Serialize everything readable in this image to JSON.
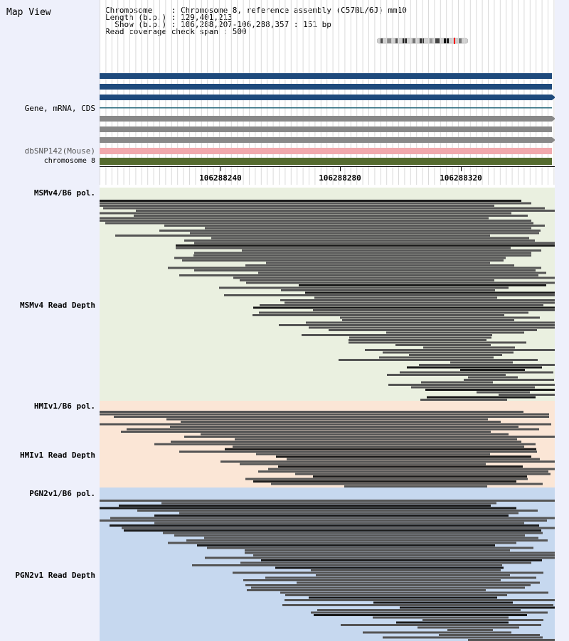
{
  "title": "Map View",
  "info": {
    "chromosome_line": "Chromosome    : Chromosome 8, reference assembly (C57BL/6J) mm10",
    "length_line": "Length (b.p.) : 129,401,213",
    "show_line": "  Show (b.p.) : 106,288,207-106,288,357 : 151 bp",
    "coverage_line": "Read coverage check span : 500"
  },
  "labels": {
    "gene": "Gene, mRNA, CDS",
    "dbsnp": "dbSNP142(Mouse)",
    "chromosome": "chromosome 8",
    "msm_pol": "MSMv4/B6 pol.",
    "msm_depth": "MSMv4 Read Depth",
    "hmi_pol": "HMIv1/B6 pol.",
    "hmi_depth": "HMIv1 Read Depth",
    "pgn_pol": "PGN2v1/B6 pol.",
    "pgn_depth": "PGN2v1 Read Depth"
  },
  "ruler": {
    "ticks": [
      "106288240",
      "106288280",
      "106288320"
    ]
  },
  "colors": {
    "gene_blue": "#1e4a7c",
    "gene_grey": "#888888",
    "snp_pink": "#f0a8ac",
    "chromosome_green": "#556b2f",
    "msm_bg": "#eaf0e0",
    "hmi_bg": "#fbe6d6",
    "pgn_bg": "#c6d8ef",
    "read": "#555555",
    "read_dark": "#1a1a1a",
    "marker": "#ff0000"
  }
}
